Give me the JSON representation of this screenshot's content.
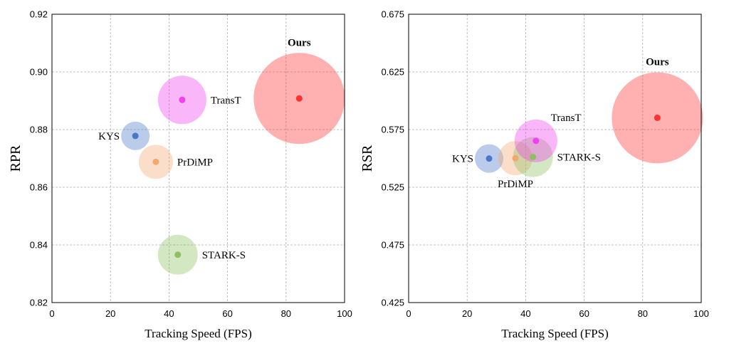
{
  "chart_data": [
    {
      "type": "scatter",
      "xlabel": "Tracking Speed (FPS)",
      "ylabel": "RPR",
      "xlim": [
        0,
        100
      ],
      "ylim": [
        0.82,
        0.92
      ],
      "xticks": [
        "0",
        "20",
        "40",
        "60",
        "80",
        "100"
      ],
      "yticks": [
        "0.82",
        "0.84",
        "0.86",
        "0.88",
        "0.90",
        "0.92"
      ],
      "grid": true,
      "points": [
        {
          "label": "KYS",
          "x": 28.5,
          "y": 0.8778,
          "r": 20,
          "color": "#4a78c8",
          "label_side": "left"
        },
        {
          "label": "PrDiMP",
          "x": 35.5,
          "y": 0.8688,
          "r": 24,
          "color": "#f4a870",
          "label_side": "right"
        },
        {
          "label": "TransT",
          "x": 44.5,
          "y": 0.8903,
          "r": 34,
          "color": "#f040f0",
          "label_side": "right"
        },
        {
          "label": "STARK-S",
          "x": 43,
          "y": 0.8366,
          "r": 28,
          "color": "#8cc060",
          "label_side": "right"
        },
        {
          "label": "Ours",
          "x": 84.5,
          "y": 0.8908,
          "r": 64,
          "color": "#ff3030",
          "label_side": "top",
          "bold": true
        }
      ]
    },
    {
      "type": "scatter",
      "xlabel": "Tracking Speed (FPS)",
      "ylabel": "RSR",
      "xlim": [
        0,
        100
      ],
      "ylim": [
        0.425,
        0.675
      ],
      "xticks": [
        "0",
        "20",
        "40",
        "60",
        "80",
        "100"
      ],
      "yticks": [
        "0.425",
        "0.475",
        "0.525",
        "0.575",
        "0.625",
        "0.675"
      ],
      "grid": true,
      "points": [
        {
          "label": "KYS",
          "x": 27.5,
          "y": 0.5499,
          "r": 20,
          "color": "#4a78c8",
          "label_side": "left"
        },
        {
          "label": "PrDiMP",
          "x": 36.5,
          "y": 0.5502,
          "r": 24,
          "color": "#f4a870",
          "label_side": "bottom"
        },
        {
          "label": "STARK-S",
          "x": 42.5,
          "y": 0.5512,
          "r": 28,
          "color": "#8cc060",
          "label_side": "right"
        },
        {
          "label": "TransT",
          "x": 43.5,
          "y": 0.5652,
          "r": 30,
          "color": "#f040f0",
          "label_side": "topright"
        },
        {
          "label": "Ours",
          "x": 85,
          "y": 0.5852,
          "r": 64,
          "color": "#ff3030",
          "label_side": "top",
          "bold": true
        }
      ]
    }
  ]
}
